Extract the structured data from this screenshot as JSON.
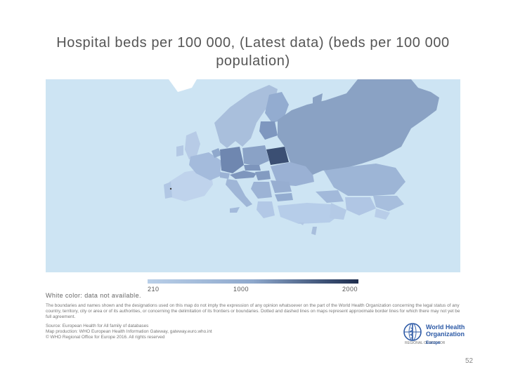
{
  "title": "Hospital beds per 100 000, (Latest data) (beds per 100 000 population)",
  "legend": {
    "ticks": [
      "210",
      "1000",
      "2000"
    ],
    "min": 210,
    "mid": 1000,
    "max": 2000,
    "colors": {
      "low": "#b9cfe8",
      "mid": "#8ea8cc",
      "high": "#1f2e4e"
    },
    "no_data_note": "White color: data not available."
  },
  "map": {
    "sea_color": "#cde4f3",
    "regions": [
      {
        "name": "Russian Federation",
        "color": "#8aa2c4"
      },
      {
        "name": "Kazakhstan",
        "color": "#9db5d6"
      },
      {
        "name": "Belarus",
        "color": "#3b4f73"
      },
      {
        "name": "Germany",
        "color": "#6f87b0"
      },
      {
        "name": "Turkey",
        "color": "#b6cde9"
      },
      {
        "name": "France",
        "color": "#a4bbdc"
      },
      {
        "name": "Spain",
        "color": "#bfd3ec"
      }
    ]
  },
  "disclaimer": "The boundaries and names shown and the designations used on this map do not imply the expression of any opinion whatsoever on the part of the World Health Organization concerning the legal status of any country, territory, city or area or of its authorities, or concerning the delimitation of its frontiers or boundaries. Dotted and dashed lines on maps represent approximate border lines for which there may not yet be full agreement.",
  "sources": {
    "line1": "Source: European Health for All family of databases",
    "line2": "Map production: WHO European Health Information Gateway, gateway.euro.who.int",
    "line3": "© WHO Regional Office for Europe 2016. All rights reserved"
  },
  "logo": {
    "line1": "World Health",
    "line2": "Organization",
    "region": "Europe",
    "sub": "REGIONAL OFFICE FOR"
  },
  "page_number": "52"
}
